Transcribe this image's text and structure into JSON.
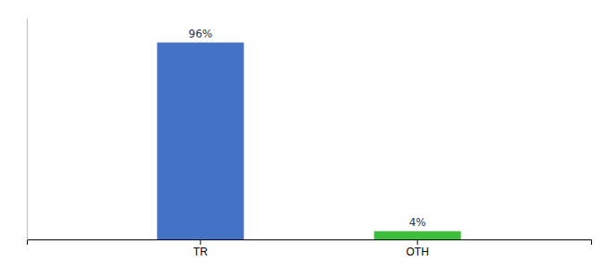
{
  "chart_data": {
    "type": "bar",
    "categories": [
      "TR",
      "OTH"
    ],
    "values": [
      96,
      4
    ],
    "value_labels": [
      "96%",
      "4%"
    ],
    "colors": [
      "#4472c4",
      "#3dbf3d"
    ],
    "ylim": [
      0,
      108
    ],
    "data_labels": true,
    "tick_labels": "x"
  }
}
